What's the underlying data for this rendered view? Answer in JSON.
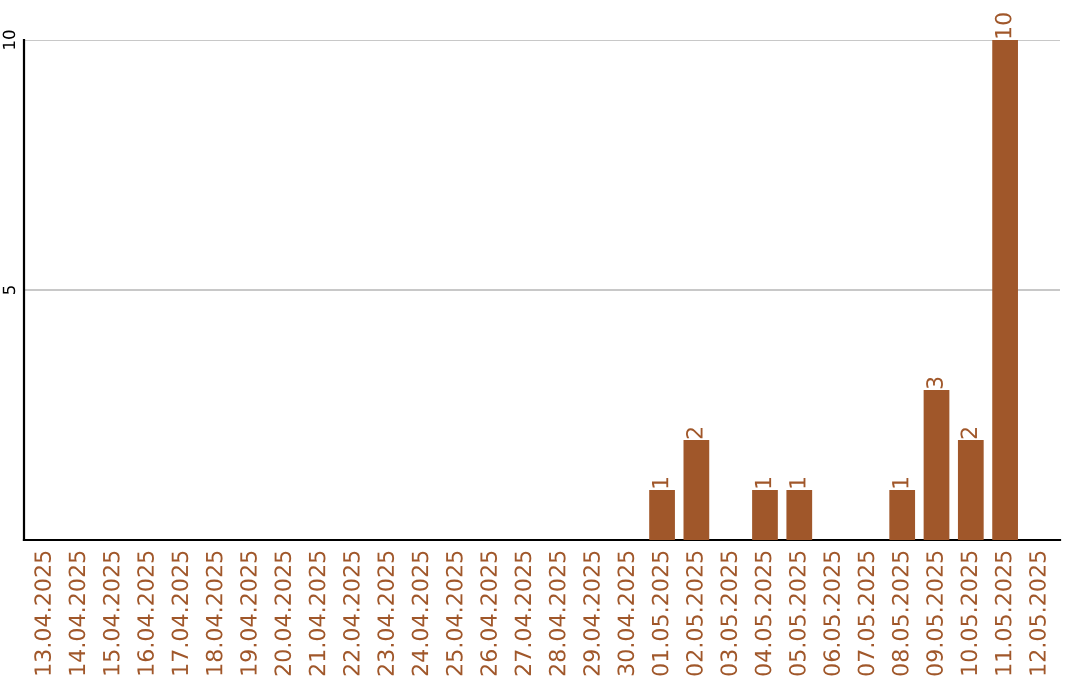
{
  "chart_data": {
    "type": "bar",
    "categories": [
      "13.04.2025",
      "14.04.2025",
      "15.04.2025",
      "16.04.2025",
      "17.04.2025",
      "18.04.2025",
      "19.04.2025",
      "20.04.2025",
      "21.04.2025",
      "22.04.2025",
      "23.04.2025",
      "24.04.2025",
      "25.04.2025",
      "26.04.2025",
      "27.04.2025",
      "28.04.2025",
      "29.04.2025",
      "30.04.2025",
      "01.05.2025",
      "02.05.2025",
      "03.05.2025",
      "04.05.2025",
      "05.05.2025",
      "06.05.2025",
      "07.05.2025",
      "08.05.2025",
      "09.05.2025",
      "10.05.2025",
      "11.05.2025",
      "12.05.2025"
    ],
    "values": [
      0,
      0,
      0,
      0,
      0,
      0,
      0,
      0,
      0,
      0,
      0,
      0,
      0,
      0,
      0,
      0,
      0,
      0,
      1,
      2,
      0,
      1,
      1,
      0,
      0,
      1,
      3,
      2,
      10,
      0
    ],
    "value_labels": [
      null,
      null,
      null,
      null,
      null,
      null,
      null,
      null,
      null,
      null,
      null,
      null,
      null,
      null,
      null,
      null,
      null,
      null,
      "1",
      "2",
      null,
      "1",
      "1",
      null,
      null,
      "1",
      "3",
      "2",
      "10",
      null
    ],
    "color": "#a0572a",
    "ylim": [
      0,
      10
    ],
    "yticks": [
      5,
      10
    ],
    "grid": "y"
  }
}
